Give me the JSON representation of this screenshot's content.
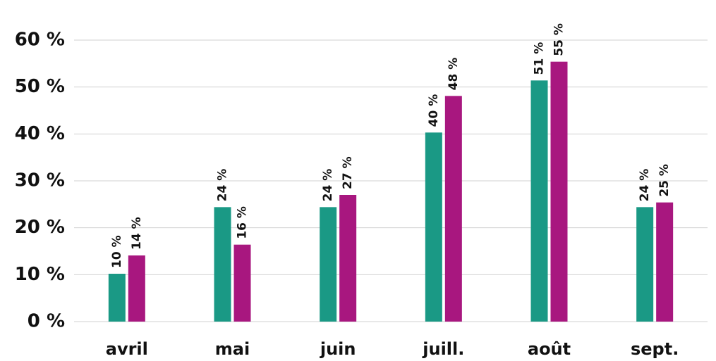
{
  "chart_data": {
    "type": "bar",
    "categories": [
      "avril",
      "mai",
      "juin",
      "juill.",
      "août",
      "sept."
    ],
    "series": [
      {
        "color": "#1a9985",
        "values": [
          10.2,
          24.4,
          24.4,
          40.3,
          51.4,
          24.4
        ],
        "value_labels": [
          "10 %",
          "24 %",
          "24 %",
          "40 %",
          "51 %",
          "24 %"
        ]
      },
      {
        "color": "#a8177f",
        "values": [
          14.1,
          16.4,
          27.0,
          48.1,
          55.4,
          25.4
        ],
        "value_labels": [
          "14 %",
          "16 %",
          "27 %",
          "48 %",
          "55 %",
          "25 %"
        ]
      }
    ],
    "ylim": [
      0,
      60
    ],
    "yticks": [
      {
        "value": 0,
        "label": "0 %"
      },
      {
        "value": 10,
        "label": "10 %"
      },
      {
        "value": 20,
        "label": "20 %"
      },
      {
        "value": 30,
        "label": "30 %"
      },
      {
        "value": 40,
        "label": "40 %"
      },
      {
        "value": 50,
        "label": "50 %"
      },
      {
        "value": 60,
        "label": "60 %"
      }
    ],
    "grid": true
  }
}
